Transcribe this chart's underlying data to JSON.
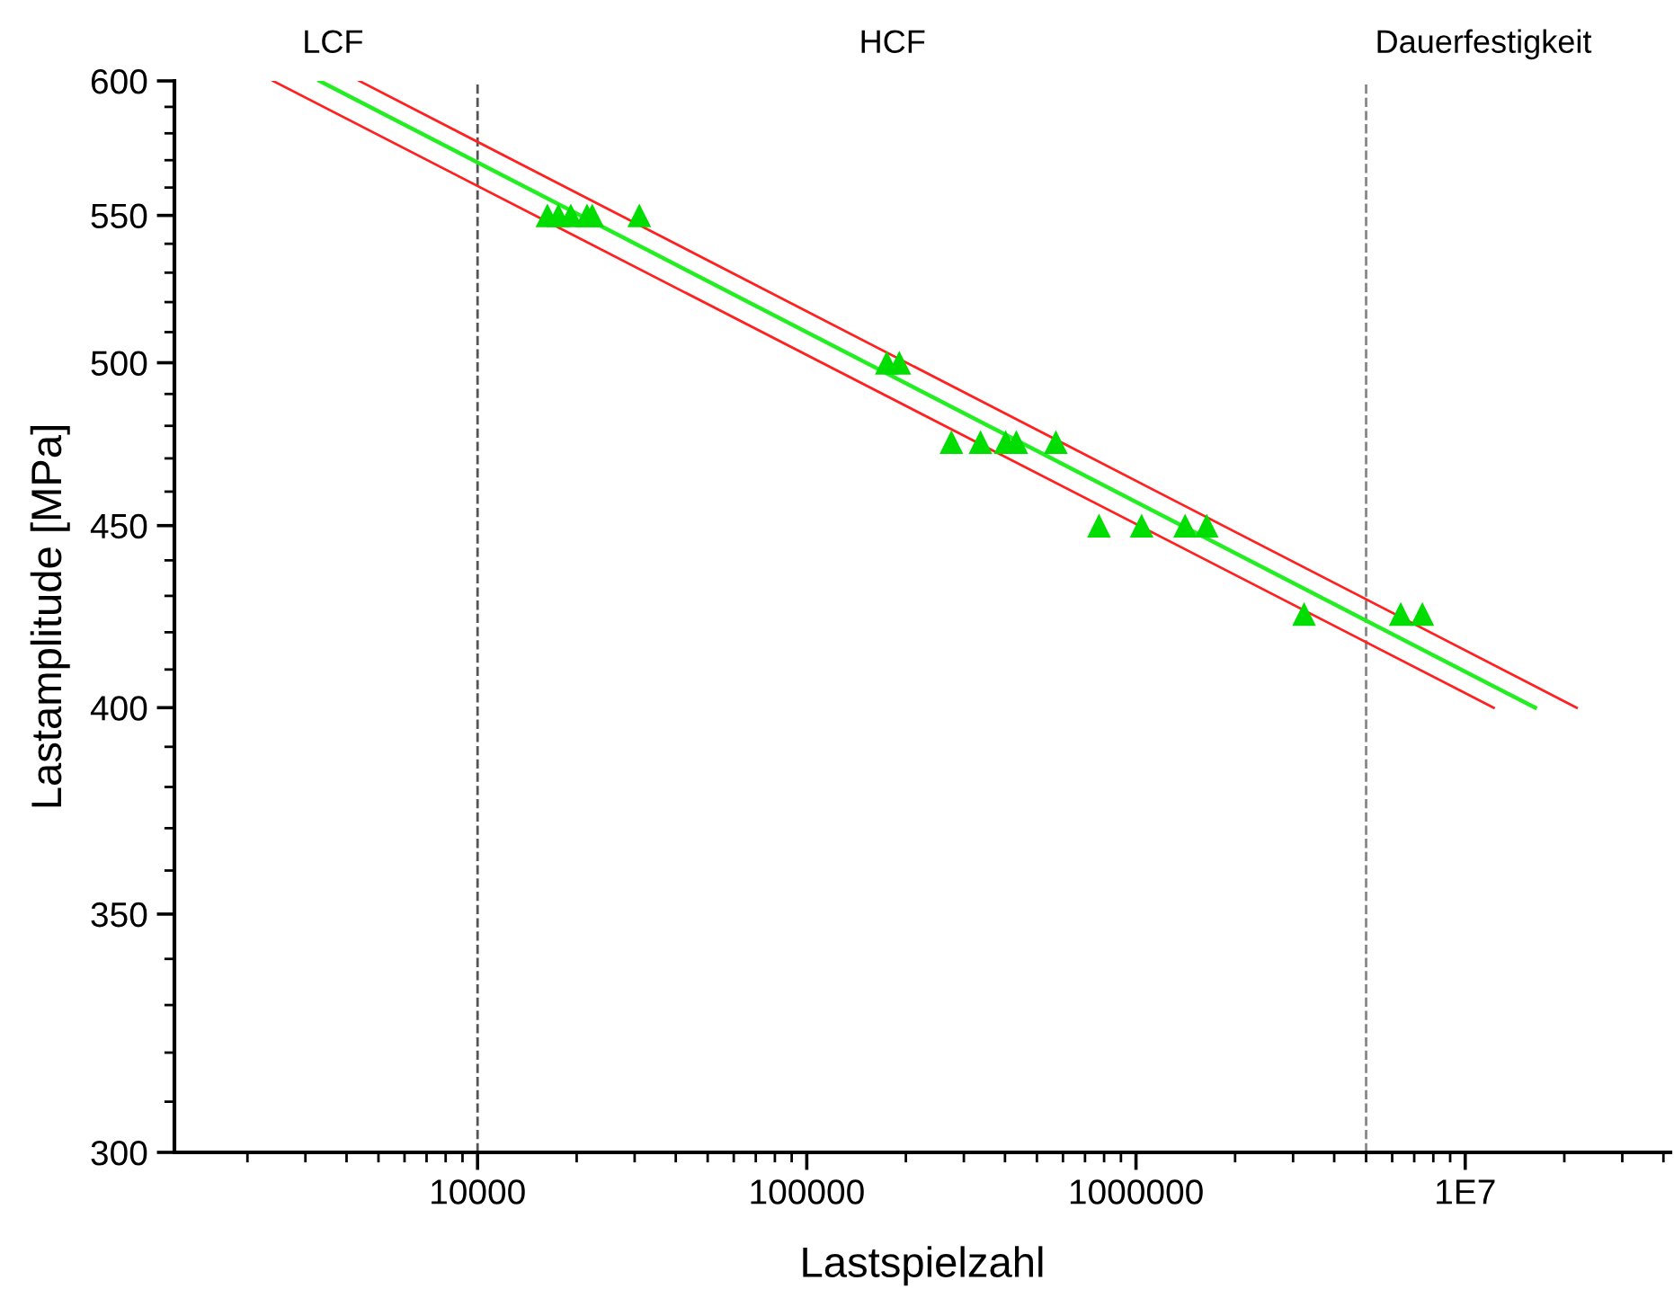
{
  "chart_data": {
    "type": "scatter",
    "xlabel": "Lastspielzahl",
    "ylabel": "Lastamplitude [MPa]",
    "log": "xy",
    "grid": false,
    "legend": false,
    "xlim": [
      1200,
      42000000
    ],
    "xticks": [
      {
        "value": 10000,
        "label": "10000"
      },
      {
        "value": 100000,
        "label": "100000"
      },
      {
        "value": 1000000,
        "label": "1000000"
      },
      {
        "value": 10000000,
        "label": "1E7"
      }
    ],
    "ylim": [
      300,
      600
    ],
    "yticks": [
      300,
      350,
      400,
      450,
      500,
      550,
      600
    ],
    "series": [
      {
        "color": "#00dd00",
        "marker": "triangle",
        "x": [
          16300,
          17600,
          19200,
          21500,
          22300,
          31000,
          175000,
          191000,
          275000,
          337000,
          402000,
          433000,
          571000,
          772000,
          1040000,
          1410000,
          1640000,
          3240000,
          6370000,
          7410000
        ],
        "values": [
          550,
          550,
          550,
          550,
          550,
          550,
          500,
          500,
          475,
          475,
          475,
          475,
          475,
          450,
          450,
          450,
          450,
          425,
          425,
          425
        ]
      },
      {
        "type": "line",
        "color": "#22ee22",
        "line_style": "solid",
        "x": [
          3310,
          16300000
        ],
        "values": [
          600,
          400
        ]
      },
      {
        "type": "line",
        "color": "#ff2020",
        "line_style": "solid",
        "x": [
          4370,
          21800000
        ],
        "values": [
          600,
          400
        ]
      },
      {
        "type": "line",
        "color": "#ff2020",
        "line_style": "solid",
        "x": [
          2390,
          12200000
        ],
        "values": [
          600,
          400
        ]
      }
    ],
    "ref_lines": [
      {
        "axis": "x",
        "value": 10000,
        "color": "#555555",
        "line_style": "dashed"
      },
      {
        "axis": "x",
        "value": 5000000,
        "color": "#888888",
        "line_style": "dashed"
      }
    ],
    "annotations": [
      "LCF",
      "HCF",
      "Dauerfestigkeit"
    ]
  }
}
